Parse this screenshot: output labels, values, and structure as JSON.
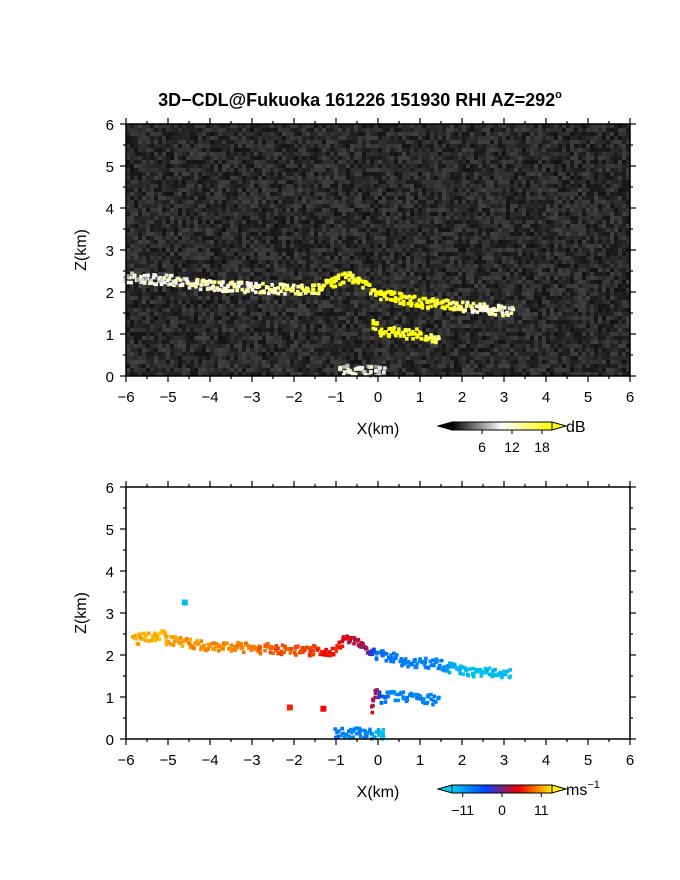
{
  "chart_data": [
    {
      "type": "heatmap",
      "title": "3D−CDL@Fukuoka 161226 151930 RHI AZ=292°",
      "title_main": "3D−CDL@Fukuoka 161226 151930 RHI AZ=292",
      "title_sup": "o",
      "xlabel": "X(km)",
      "ylabel": "Z(km)",
      "xlim": [
        -6,
        6
      ],
      "ylim": [
        0,
        6
      ],
      "xticks": [
        "−6",
        "−5",
        "−4",
        "−3",
        "−2",
        "−1",
        "0",
        "1",
        "2",
        "3",
        "4",
        "5",
        "6"
      ],
      "yticks": [
        "0",
        "1",
        "2",
        "3",
        "4",
        "5",
        "6"
      ],
      "background": "noise",
      "colorbar": {
        "unit": "dB",
        "ticks": [
          "6",
          "12",
          "18"
        ],
        "range": [
          0,
          20
        ],
        "colors": [
          "#000000",
          "#ffffff",
          "#ffff00"
        ]
      },
      "features": [
        {
          "kind": "echo",
          "x": [
            -6.0,
            -5.0,
            -4.0,
            -3.0,
            -2.0,
            -1.5,
            -1.0,
            -0.7,
            -0.3,
            0.0,
            0.5,
            1.0,
            1.5,
            2.0,
            2.5,
            3.0,
            3.3
          ],
          "z": [
            2.35,
            2.28,
            2.15,
            2.1,
            2.05,
            2.05,
            2.25,
            2.4,
            2.15,
            1.95,
            1.85,
            1.75,
            1.7,
            1.65,
            1.6,
            1.55,
            1.5
          ],
          "value": [
            9,
            10,
            12,
            12,
            14,
            17,
            19,
            19,
            19,
            20,
            20,
            20,
            19,
            14,
            12,
            11,
            10
          ]
        },
        {
          "kind": "echo",
          "x": [
            -0.1,
            0.1,
            0.3,
            0.6,
            0.9,
            1.2,
            1.5
          ],
          "z": [
            1.2,
            1.05,
            1.05,
            1.0,
            1.0,
            0.9,
            0.9
          ],
          "value": [
            20,
            20,
            20,
            20,
            19,
            17,
            14
          ]
        },
        {
          "kind": "echo",
          "x": [
            -0.9,
            -0.6,
            -0.3,
            0.0,
            0.2
          ],
          "z": [
            0.12,
            0.15,
            0.12,
            0.1,
            0.1
          ],
          "value": [
            9,
            10,
            9,
            8,
            8
          ]
        }
      ]
    },
    {
      "type": "heatmap",
      "xlabel": "X(km)",
      "ylabel": "Z(km)",
      "xlim": [
        -6,
        6
      ],
      "ylim": [
        0,
        6
      ],
      "xticks": [
        "−6",
        "−5",
        "−4",
        "−3",
        "−2",
        "−1",
        "0",
        "1",
        "2",
        "3",
        "4",
        "5",
        "6"
      ],
      "yticks": [
        "0",
        "1",
        "2",
        "3",
        "4",
        "5",
        "6"
      ],
      "background": "white",
      "colorbar": {
        "unit": "ms",
        "unit_sup": "−1",
        "ticks": [
          "−11",
          "0",
          "11"
        ],
        "range": [
          -14,
          14
        ],
        "colors": [
          "#00ccee",
          "#0044ff",
          "#ee0000",
          "#ffee00"
        ]
      },
      "features": [
        {
          "kind": "velocity",
          "x": [
            -5.8,
            -5.1,
            -5.0,
            -4.0,
            -3.5,
            -3.0,
            -2.5,
            -2.0,
            -1.5,
            -1.2,
            -1.0,
            -0.8,
            -0.5,
            -0.3,
            0.0,
            0.3,
            0.6,
            1.0,
            1.3,
            1.5,
            1.9,
            2.3,
            2.7,
            3.0,
            3.2
          ],
          "z": [
            2.35,
            2.5,
            2.35,
            2.2,
            2.2,
            2.15,
            2.15,
            2.1,
            2.1,
            2.05,
            2.1,
            2.35,
            2.3,
            2.1,
            2.0,
            1.95,
            1.85,
            1.8,
            1.8,
            1.75,
            1.65,
            1.6,
            1.6,
            1.55,
            1.55
          ],
          "value": [
            11,
            12,
            11,
            10,
            10,
            9,
            8,
            8,
            7,
            5,
            6,
            4,
            2,
            1,
            -7,
            -8,
            -9,
            -9,
            -9,
            -9,
            -13,
            -13,
            -13,
            -13,
            -13
          ]
        },
        {
          "kind": "velocity",
          "x": [
            -0.15,
            -0.05,
            0.1,
            0.3,
            0.6,
            0.9,
            1.2,
            1.5
          ],
          "z": [
            0.7,
            1.1,
            0.9,
            1.05,
            1.0,
            1.0,
            0.95,
            0.9
          ],
          "value": [
            3,
            1,
            -6,
            -9,
            -9,
            -9,
            -9,
            -9
          ]
        },
        {
          "kind": "velocity",
          "x": [
            -1.0,
            -0.7,
            -0.4,
            -0.2,
            0.0,
            0.2
          ],
          "z": [
            0.15,
            0.15,
            0.15,
            0.12,
            0.1,
            0.1
          ],
          "value": [
            -8,
            -9,
            -9,
            -9,
            -13,
            -13
          ]
        },
        {
          "kind": "velocity",
          "x": [
            -4.6,
            -2.1,
            -1.3
          ],
          "z": [
            3.25,
            0.75,
            0.72
          ],
          "value": [
            -13,
            6,
            5
          ]
        }
      ]
    }
  ]
}
